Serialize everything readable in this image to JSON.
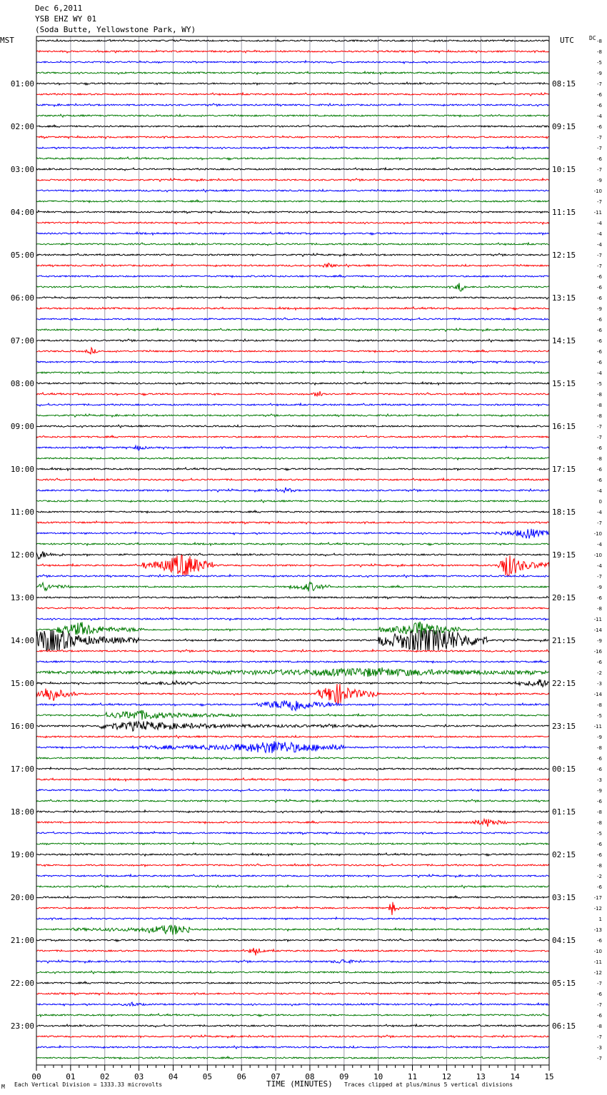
{
  "header": {
    "date": "Dec 6,2011",
    "station": "YSB EHZ WY 01",
    "location": "(Soda Butte, Yellowstone Park, WY)"
  },
  "labels": {
    "left_zone": "MST",
    "right_zone": "UTC",
    "dc_header": "DC",
    "xlabel": "TIME (MINUTES)",
    "scale_note": "Each Vertical Division = 1333.33 microvolts",
    "clip_note": "Traces clipped at plus/minus 5 vertical divisions",
    "corner_mark": "M"
  },
  "colors": {
    "traces": [
      "#000000",
      "#ff0000",
      "#0000ff",
      "#007a00"
    ],
    "grid": "#9a9aa8",
    "frame": "#000000"
  },
  "chart_data": {
    "type": "line",
    "title": "YSB EHZ WY 01",
    "xlabel": "TIME (MINUTES)",
    "xlim": [
      0,
      15
    ],
    "x_ticks": [
      "00",
      "01",
      "02",
      "03",
      "04",
      "05",
      "06",
      "07",
      "08",
      "09",
      "10",
      "11",
      "12",
      "13",
      "14",
      "15"
    ],
    "rows_per_hour": 4,
    "row_color_cycle": [
      "black",
      "red",
      "blue",
      "green"
    ],
    "left_hour_labels": [
      "01:00",
      "02:00",
      "03:00",
      "04:00",
      "05:00",
      "06:00",
      "07:00",
      "08:00",
      "09:00",
      "10:00",
      "11:00",
      "12:00",
      "13:00",
      "14:00",
      "15:00",
      "16:00",
      "17:00",
      "18:00",
      "19:00",
      "20:00",
      "21:00",
      "22:00",
      "23:00"
    ],
    "right_hour_labels": [
      "08:15",
      "09:15",
      "10:15",
      "11:15",
      "12:15",
      "13:15",
      "14:15",
      "15:15",
      "16:15",
      "17:15",
      "18:15",
      "19:15",
      "20:15",
      "21:15",
      "22:15",
      "23:15",
      "00:15",
      "01:15",
      "02:15",
      "03:15",
      "04:15",
      "05:15",
      "06:15"
    ],
    "dc_offsets": [
      "-8",
      "-8",
      "-5",
      "-9",
      "-7",
      "-6",
      "-6",
      "-4",
      "-6",
      "-7",
      "-7",
      "-6",
      "-7",
      "-9",
      "-10",
      "-7",
      "-11",
      "-4",
      "-4",
      "-4",
      "-7",
      "-7",
      "-6",
      "-6",
      "-6",
      "-9",
      "-6",
      "-6",
      "-6",
      "-6",
      "-6",
      "-4",
      "-5",
      "-8",
      "-8",
      "-8",
      "-7",
      "-7",
      "-6",
      "-8",
      "-6",
      "-6",
      "-4",
      "0",
      "-4",
      "-7",
      "-10",
      "-4",
      "-10",
      "-4",
      "-7",
      "-9",
      "-6",
      "-8",
      "-11",
      "-14",
      "-9",
      "-16",
      "-6",
      "-2",
      "-3",
      "-14",
      "-8",
      "-5",
      "-11",
      "-9",
      "-8",
      "-6",
      "-6",
      "-3",
      "-9",
      "-6",
      "-8",
      "-8",
      "-5",
      "-6",
      "-6",
      "-8",
      "-2",
      "-6",
      "-17",
      "-12",
      "1",
      "-13",
      "-6",
      "-10",
      "-11",
      "-12",
      "-7",
      "-6",
      "-7",
      "-6",
      "-8",
      "-7",
      "-3",
      "-7"
    ],
    "events": [
      {
        "row": 49,
        "start_min": 3.1,
        "end_min": 5.2,
        "peak_min": 4.3,
        "amp": 0.9
      },
      {
        "row": 49,
        "start_min": 13.5,
        "end_min": 15.0,
        "peak_min": 13.8,
        "amp": 0.9
      },
      {
        "row": 46,
        "start_min": 13.4,
        "end_min": 15.0,
        "peak_min": 14.4,
        "amp": 0.35
      },
      {
        "row": 48,
        "start_min": 0.0,
        "end_min": 0.8,
        "peak_min": 0.1,
        "amp": 0.3
      },
      {
        "row": 51,
        "start_min": 0.0,
        "end_min": 1.0,
        "peak_min": 0.2,
        "amp": 0.3
      },
      {
        "row": 51,
        "start_min": 7.4,
        "end_min": 8.6,
        "peak_min": 8.0,
        "amp": 0.3
      },
      {
        "row": 55,
        "start_min": 0.6,
        "end_min": 3.2,
        "peak_min": 1.3,
        "amp": 0.45
      },
      {
        "row": 55,
        "start_min": 10.0,
        "end_min": 12.4,
        "peak_min": 11.3,
        "amp": 0.55
      },
      {
        "row": 56,
        "start_min": 0.0,
        "end_min": 3.0,
        "peak_min": 0.4,
        "amp": 1.0
      },
      {
        "row": 56,
        "start_min": 10.0,
        "end_min": 13.2,
        "peak_min": 11.5,
        "amp": 1.4
      },
      {
        "row": 59,
        "start_min": 0.0,
        "end_min": 14.9,
        "peak_min": 9.7,
        "amp": 0.25
      },
      {
        "row": 60,
        "start_min": 3.0,
        "end_min": 5.0,
        "peak_min": 4.0,
        "amp": 0.12
      },
      {
        "row": 60,
        "start_min": 13.8,
        "end_min": 15.0,
        "peak_min": 14.7,
        "amp": 0.3
      },
      {
        "row": 61,
        "start_min": 0.0,
        "end_min": 1.2,
        "peak_min": 0.4,
        "amp": 0.6
      },
      {
        "row": 61,
        "start_min": 8.2,
        "end_min": 10.0,
        "peak_min": 8.8,
        "amp": 0.8
      },
      {
        "row": 62,
        "start_min": 6.4,
        "end_min": 9.0,
        "peak_min": 7.5,
        "amp": 0.45
      },
      {
        "row": 63,
        "start_min": 2.0,
        "end_min": 6.0,
        "peak_min": 3.0,
        "amp": 0.3
      },
      {
        "row": 64,
        "start_min": 1.8,
        "end_min": 10.0,
        "peak_min": 3.0,
        "amp": 0.25
      },
      {
        "row": 66,
        "start_min": 2.8,
        "end_min": 9.0,
        "peak_min": 7.0,
        "amp": 0.4
      },
      {
        "row": 73,
        "start_min": 12.5,
        "end_min": 13.8,
        "peak_min": 13.2,
        "amp": 0.25
      },
      {
        "row": 81,
        "start_min": 10.3,
        "end_min": 10.6,
        "peak_min": 10.4,
        "amp": 0.6
      },
      {
        "row": 83,
        "start_min": 1.0,
        "end_min": 4.5,
        "peak_min": 4.0,
        "amp": 0.3
      },
      {
        "row": 85,
        "start_min": 6.2,
        "end_min": 6.7,
        "peak_min": 6.4,
        "amp": 0.3
      },
      {
        "row": 42,
        "start_min": 7.0,
        "end_min": 7.6,
        "peak_min": 7.3,
        "amp": 0.15
      },
      {
        "row": 38,
        "start_min": 2.8,
        "end_min": 3.3,
        "peak_min": 3.0,
        "amp": 0.15
      },
      {
        "row": 23,
        "start_min": 12.2,
        "end_min": 12.6,
        "peak_min": 12.4,
        "amp": 0.35
      },
      {
        "row": 21,
        "start_min": 8.3,
        "end_min": 8.8,
        "peak_min": 8.5,
        "amp": 0.2
      },
      {
        "row": 29,
        "start_min": 1.4,
        "end_min": 1.8,
        "peak_min": 1.6,
        "amp": 0.2
      },
      {
        "row": 33,
        "start_min": 8.1,
        "end_min": 8.5,
        "peak_min": 8.3,
        "amp": 0.25
      },
      {
        "row": 86,
        "start_min": 8.6,
        "end_min": 9.4,
        "peak_min": 9.0,
        "amp": 0.15
      },
      {
        "row": 90,
        "start_min": 2.5,
        "end_min": 3.2,
        "peak_min": 2.8,
        "amp": 0.12
      }
    ]
  }
}
